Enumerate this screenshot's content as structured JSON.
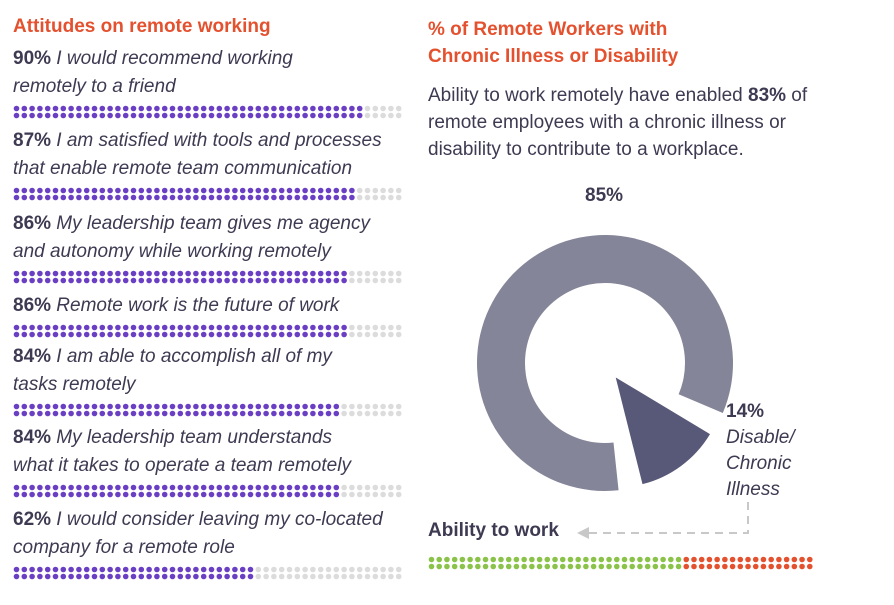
{
  "left": {
    "title": "Attitudes on remote working",
    "items": [
      {
        "pct": "90%",
        "text": " I would recommend working remotely to a friend",
        "line1": " I would recommend working",
        "line2": "remotely to a friend",
        "value": 90
      },
      {
        "pct": "87%",
        "text": "",
        "line1": " I am satisfied with tools and processes",
        "line2": "that enable remote team communication",
        "value": 87
      },
      {
        "pct": "86%",
        "text": "",
        "line1": " My leadership team gives me agency",
        "line2": "and autonomy while working remotely",
        "value": 86
      },
      {
        "pct": "86%",
        "text": "",
        "line1": " Remote work is the future of work",
        "line2": "",
        "value": 86
      },
      {
        "pct": "84%",
        "text": "",
        "line1": " I am able to accomplish all of my",
        "line2": "tasks remotely",
        "value": 84
      },
      {
        "pct": "84%",
        "text": "",
        "line1": " My leadership team understands",
        "line2": "what it takes to operate a team remotely",
        "value": 84
      },
      {
        "pct": "62%",
        "text": "",
        "line1": " I would consider leaving my co-located",
        "line2": "company for a remote role",
        "value": 62
      }
    ]
  },
  "right": {
    "title_line1": "% of Remote Workers with",
    "title_line2": "Chronic Illness or Disability",
    "desc_pre": "Ability to work remotely have enabled ",
    "desc_bold": "83%",
    "desc_post": " of remote employees with a chronic illness or disability to contribute to a workplace."
  },
  "chart_data": {
    "type": "pie",
    "slices": [
      {
        "label": "85%",
        "value": 85
      },
      {
        "label": "14%",
        "value": 14,
        "name": "Disable/ Chronic Illness"
      }
    ],
    "ability_label": "Ability to work",
    "ability_bar": {
      "green_fraction": 0.66
    }
  },
  "colors": {
    "accent": "#e4512f",
    "dot_filled": "#6a3fc4",
    "dot_empty": "#dcdcdc",
    "donut_main": "#858599",
    "donut_slice": "#585878",
    "green": "#8bc34a",
    "red": "#e4512f"
  }
}
